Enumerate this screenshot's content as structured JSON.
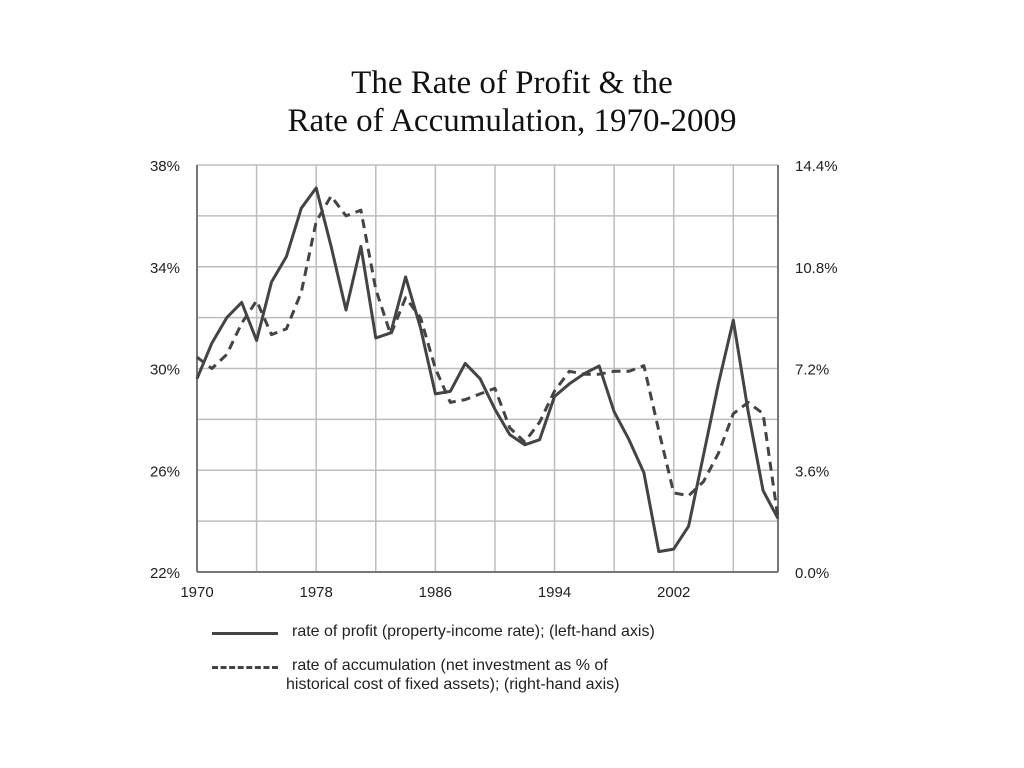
{
  "title_line1": "The Rate of Profit & the",
  "title_line2": "Rate of Accumulation, 1970-2009",
  "chart_data": {
    "type": "line",
    "x": [
      1970,
      1971,
      1972,
      1973,
      1974,
      1975,
      1976,
      1977,
      1978,
      1979,
      1980,
      1981,
      1982,
      1983,
      1984,
      1985,
      1986,
      1987,
      1988,
      1989,
      1990,
      1991,
      1992,
      1993,
      1994,
      1995,
      1996,
      1997,
      1998,
      1999,
      2000,
      2001,
      2002,
      2003,
      2004,
      2005,
      2006,
      2007,
      2008,
      2009
    ],
    "xticks": [
      "1970",
      "1978",
      "1986",
      "1994",
      "2002"
    ],
    "xlim": [
      1970,
      2009
    ],
    "y_left": {
      "ticks": [
        "22%",
        "26%",
        "30%",
        "34%",
        "38%"
      ],
      "lim": [
        22,
        38
      ]
    },
    "y_right": {
      "ticks": [
        "0.0%",
        "3.6%",
        "7.2%",
        "10.8%",
        "14.4%"
      ],
      "lim": [
        0,
        14.4
      ]
    },
    "grid": true,
    "series": [
      {
        "name": "rate of profit (property-income rate); (left-hand axis)",
        "axis": "left",
        "style": "solid",
        "color": "#444444",
        "values": [
          29.6,
          31.0,
          32.0,
          32.6,
          31.1,
          33.4,
          34.4,
          36.3,
          37.1,
          34.8,
          32.3,
          34.8,
          31.2,
          31.4,
          33.6,
          31.6,
          29.0,
          29.1,
          30.2,
          29.6,
          28.4,
          27.4,
          27.0,
          27.2,
          28.9,
          29.4,
          29.8,
          30.1,
          28.3,
          27.2,
          25.9,
          22.8,
          22.9,
          23.8,
          26.6,
          29.4,
          31.9,
          28.3,
          25.2,
          24.1
        ]
      },
      {
        "name": "rate of accumulation (net investment as % of historical cost of fixed assets); (right-hand axis)",
        "axis": "right",
        "style": "dashed",
        "color": "#444444",
        "values": [
          7.6,
          7.2,
          7.7,
          8.8,
          9.6,
          8.4,
          8.6,
          9.9,
          12.4,
          13.3,
          12.6,
          12.8,
          10.0,
          8.4,
          9.7,
          9.0,
          7.2,
          6.0,
          6.1,
          6.3,
          6.5,
          5.1,
          4.6,
          5.3,
          6.4,
          7.1,
          7.0,
          7.0,
          7.1,
          7.1,
          7.3,
          5.0,
          2.8,
          2.7,
          3.2,
          4.2,
          5.6,
          6.0,
          5.6,
          1.9
        ]
      }
    ]
  },
  "legend": {
    "profit_label": "rate of profit (property-income rate); (left-hand axis)",
    "accum_label_line1": "rate of accumulation (net investment as % of",
    "accum_label_line2": "historical cost of fixed assets); (right-hand axis)"
  }
}
